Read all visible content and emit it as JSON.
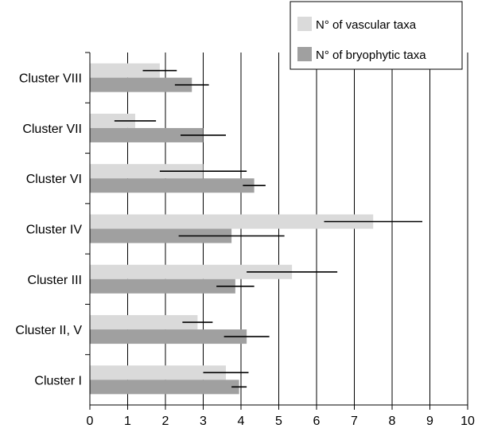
{
  "chart_data": {
    "type": "bar",
    "orientation": "horizontal",
    "title": "",
    "xlabel": "",
    "ylabel": "",
    "xlim": [
      0,
      10
    ],
    "xticks": [
      "0",
      "1",
      "2",
      "3",
      "4",
      "5",
      "6",
      "7",
      "8",
      "9",
      "10"
    ],
    "grid": "vertical",
    "legend_position": "top-right",
    "categories": [
      "Cluster I",
      "Cluster II, V",
      "Cluster III",
      "Cluster IV",
      "Cluster VI",
      "Cluster VII",
      "Cluster VIII"
    ],
    "series": [
      {
        "name": "N° of vascular taxa",
        "color": "#dadada",
        "values": [
          3.6,
          2.85,
          5.35,
          7.5,
          3.0,
          1.2,
          1.85
        ],
        "error": [
          0.6,
          0.4,
          1.2,
          1.3,
          1.15,
          0.55,
          0.45
        ]
      },
      {
        "name": "N° of bryophytic taxa",
        "color": "#a0a0a0",
        "values": [
          3.95,
          4.15,
          3.85,
          3.75,
          4.35,
          3.0,
          2.7
        ],
        "error": [
          0.2,
          0.6,
          0.5,
          1.4,
          0.3,
          0.6,
          0.45
        ]
      }
    ]
  }
}
